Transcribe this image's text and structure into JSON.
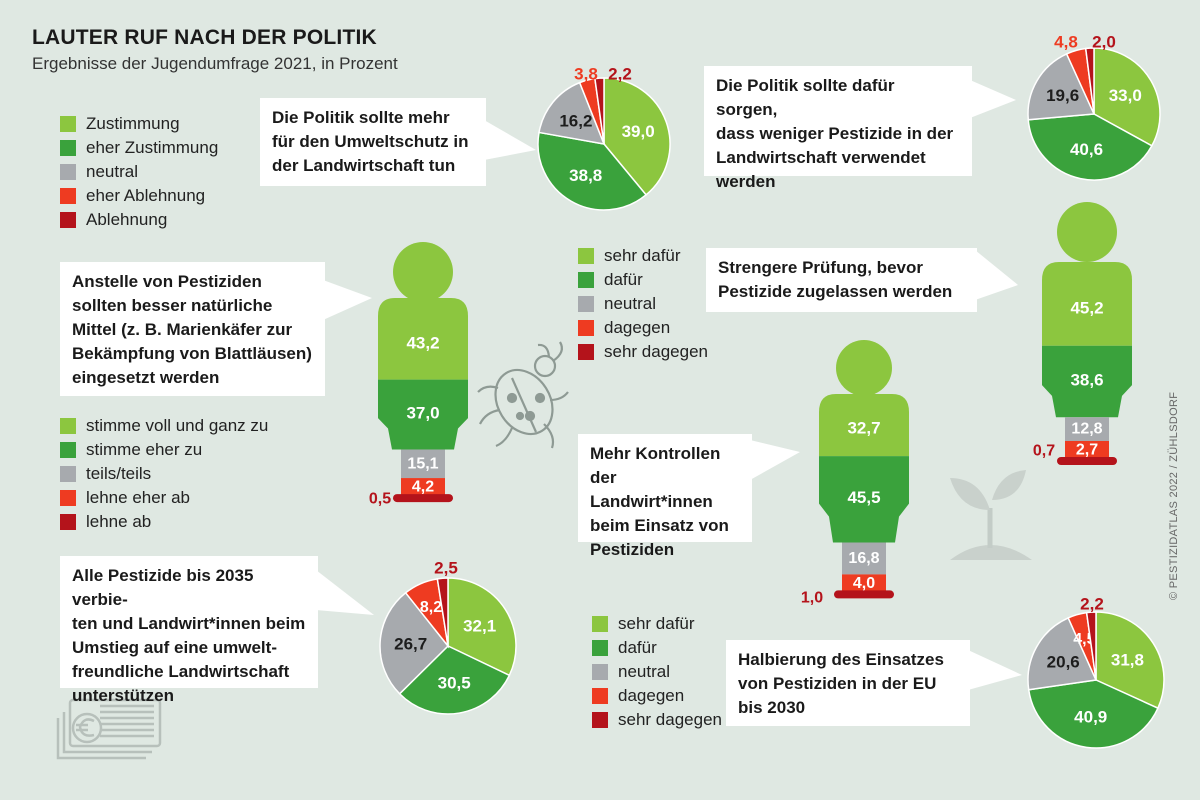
{
  "title": "LAUTER RUF NACH DER POLITIK",
  "subtitle": "Ergebnisse der Jugendumfrage 2021, in Prozent",
  "credit": "© PESTIZIDATLAS 2022 / ZÜHLSDORF",
  "colors": {
    "light_green": "#8cc63f",
    "green": "#3aa23c",
    "grey": "#a7aaae",
    "orange_red": "#ee3b21",
    "dark_red": "#b4131b",
    "background": "#dfe8e2"
  },
  "legends": {
    "agreement": [
      "Zustimmung",
      "eher Zustimmung",
      "neutral",
      "eher Ablehnung",
      "Ablehnung"
    ],
    "statement": [
      "stimme voll und ganz zu",
      "stimme eher zu",
      "teils/teils",
      "lehne eher ab",
      "lehne ab"
    ],
    "support_1": [
      "sehr dafür",
      "dafür",
      "neutral",
      "dagegen",
      "sehr dagegen"
    ],
    "support_2": [
      "sehr dafür",
      "dafür",
      "neutral",
      "dagegen",
      "sehr dagegen"
    ]
  },
  "bubbles": {
    "b1": "Die Politik sollte mehr\nfür den Umweltschutz in\nder Landwirtschaft tun",
    "b2": "Die Politik sollte dafür sorgen,\ndass weniger Pestizide in der\nLandwirtschaft verwendet\nwerden",
    "b3": "Anstelle von Pestiziden\nsollten besser natürliche\nMittel (z. B. Marienkäfer zur\nBekämpfung von Blattläusen)\neingesetzt werden",
    "b4": "Strengere Prüfung, bevor\nPestizide zugelassen werden",
    "b5": "Mehr Kontrollen\nder Landwirt*innen\nbeim Einsatz von\nPestiziden",
    "b6": "Alle Pestizide bis 2035 verbie-\nten und Landwirt*innen beim\nUmstieg auf eine umwelt-\nfreundliche Landwirtschaft\nunterstützen",
    "b7": "Halbierung des Einsatzes\nvon Pestiziden in der EU\nbis 2030"
  },
  "chart_data": [
    {
      "type": "pie",
      "question": "Die Politik sollte mehr für den Umweltschutz in der Landwirtschaft tun",
      "categories": [
        "Zustimmung",
        "eher Zustimmung",
        "neutral",
        "eher Ablehnung",
        "Ablehnung"
      ],
      "values": [
        39.0,
        38.8,
        16.2,
        3.8,
        2.2
      ],
      "labels": [
        "39,0",
        "38,8",
        "16,2",
        "3,8",
        "2,2"
      ]
    },
    {
      "type": "pie",
      "question": "Die Politik sollte dafür sorgen, dass weniger Pestizide in der Landwirtschaft verwendet werden",
      "categories": [
        "Zustimmung",
        "eher Zustimmung",
        "neutral",
        "eher Ablehnung",
        "Ablehnung"
      ],
      "values": [
        33.0,
        40.6,
        19.6,
        4.8,
        2.0
      ],
      "labels": [
        "33,0",
        "40,6",
        "19,6",
        "4,8",
        "2,0"
      ]
    },
    {
      "type": "bar",
      "question": "Anstelle von Pestiziden sollten besser natürliche Mittel (z. B. Marienkäfer zur Bekämpfung von Blattläusen) eingesetzt werden",
      "categories": [
        "stimme voll und ganz zu",
        "stimme eher zu",
        "teils/teils",
        "lehne eher ab",
        "lehne ab"
      ],
      "values": [
        43.2,
        37.0,
        15.1,
        4.2,
        0.5
      ],
      "labels": [
        "43,2",
        "37,0",
        "15,1",
        "4,2",
        "0,5"
      ]
    },
    {
      "type": "bar",
      "question": "Strengere Prüfung, bevor Pestizide zugelassen werden",
      "categories": [
        "sehr dafür",
        "dafür",
        "neutral",
        "dagegen",
        "sehr dagegen"
      ],
      "values": [
        45.2,
        38.6,
        12.8,
        2.7,
        0.7
      ],
      "labels": [
        "45,2",
        "38,6",
        "12,8",
        "2,7",
        "0,7"
      ]
    },
    {
      "type": "bar",
      "question": "Mehr Kontrollen der Landwirt*innen beim Einsatz von Pestiziden",
      "categories": [
        "sehr dafür",
        "dafür",
        "neutral",
        "dagegen",
        "sehr dagegen"
      ],
      "values": [
        32.7,
        45.5,
        16.8,
        4.0,
        1.0
      ],
      "labels": [
        "32,7",
        "45,5",
        "16,8",
        "4,0",
        "1,0"
      ]
    },
    {
      "type": "pie",
      "question": "Alle Pestizide bis 2035 verbieten und Landwirt*innen beim Umstieg auf eine umweltfreundliche Landwirtschaft unterstützen",
      "categories": [
        "sehr dafür",
        "dafür",
        "neutral",
        "dagegen",
        "sehr dagegen"
      ],
      "values": [
        32.1,
        30.5,
        26.7,
        8.2,
        2.5
      ],
      "labels": [
        "32,1",
        "30,5",
        "26,7",
        "8,2",
        "2,5"
      ]
    },
    {
      "type": "pie",
      "question": "Halbierung des Einsatzes von Pestiziden in der EU bis 2030",
      "categories": [
        "sehr dafür",
        "dafür",
        "neutral",
        "dagegen",
        "sehr dagegen"
      ],
      "values": [
        31.8,
        40.9,
        20.6,
        4.5,
        2.2
      ],
      "labels": [
        "31,8",
        "40,9",
        "20,6",
        "4,5",
        "2,2"
      ]
    }
  ]
}
